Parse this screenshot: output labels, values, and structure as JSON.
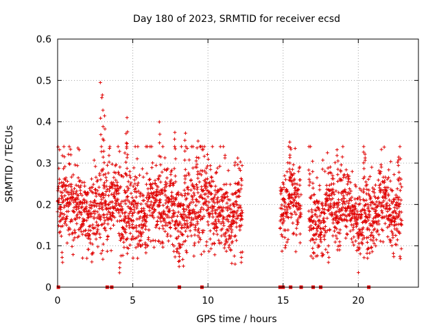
{
  "chart_data": {
    "type": "scatter",
    "title": "Day 180 of 2023, SRMTID for receiver ecsd",
    "xlabel": "GPS time / hours",
    "ylabel": "SRMTID / TECUs",
    "xlim": [
      0,
      24
    ],
    "ylim": [
      0,
      0.6
    ],
    "xticks": [
      0,
      5,
      10,
      15,
      20
    ],
    "xtick_labels": [
      "0",
      "5",
      "10",
      "15",
      "20"
    ],
    "yticks": [
      0,
      0.1,
      0.2,
      0.3,
      0.4,
      0.5,
      0.6
    ],
    "ytick_labels": [
      "0",
      "0.1",
      "0.2",
      "0.3",
      "0.4",
      "0.5",
      "0.6"
    ],
    "grid": true,
    "marker": "+",
    "series_color": "#e00000",
    "series": [
      {
        "name": "SRMTID",
        "segments": [
          {
            "x_start": 0.0,
            "x_end": 12.3,
            "mean": 0.19,
            "spread": 0.05
          },
          {
            "x_start": 14.8,
            "x_end": 16.2,
            "mean": 0.19,
            "spread": 0.05
          },
          {
            "x_start": 16.7,
            "x_end": 22.9,
            "mean": 0.18,
            "spread": 0.045
          }
        ],
        "peaks": [
          {
            "x": 2.9,
            "y": 0.5
          },
          {
            "x": 3.0,
            "y": 0.47
          },
          {
            "x": 3.1,
            "y": 0.42
          },
          {
            "x": 4.6,
            "y": 0.41
          },
          {
            "x": 4.6,
            "y": 0.38
          },
          {
            "x": 6.8,
            "y": 0.4
          },
          {
            "x": 7.8,
            "y": 0.38
          },
          {
            "x": 8.5,
            "y": 0.38
          },
          {
            "x": 9.3,
            "y": 0.36
          },
          {
            "x": 15.5,
            "y": 0.36
          },
          {
            "x": 18.6,
            "y": 0.34
          },
          {
            "x": 20.4,
            "y": 0.33
          },
          {
            "x": 22.7,
            "y": 0.32
          }
        ],
        "lows": [
          {
            "x": 0.3,
            "y": 0.06
          },
          {
            "x": 4.1,
            "y": 0.035
          },
          {
            "x": 8.1,
            "y": 0.05
          },
          {
            "x": 12.2,
            "y": 0.06
          },
          {
            "x": 17.0,
            "y": 0.07
          },
          {
            "x": 18.0,
            "y": 0.06
          },
          {
            "x": 20.6,
            "y": 0.07
          }
        ],
        "zero_points_x": [
          0.05,
          3.3,
          3.6,
          8.1,
          9.6,
          14.8,
          14.9,
          15.0,
          15.5,
          16.2,
          17.0,
          17.5,
          20.7
        ]
      }
    ]
  }
}
